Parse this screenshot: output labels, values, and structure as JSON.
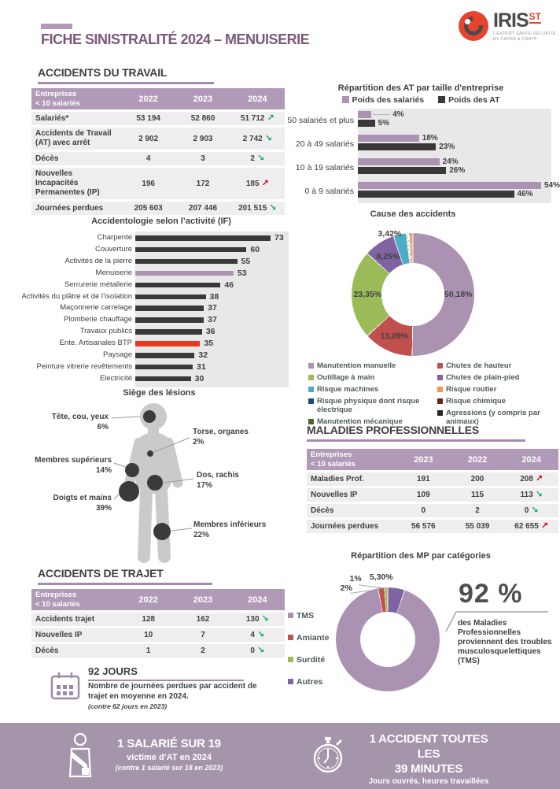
{
  "page_title": "FICHE SINISTRALITÉ 2024 – MENUISERIE",
  "logo": {
    "brand": "IRIS",
    "sup": "ST",
    "tagline_line1": "L’EXPERT SANTÉ-SÉCURITÉ",
    "tagline_line2": "BY CAPEB & CNATP"
  },
  "colors": {
    "accent_purple": "#a58bb0",
    "table_header_purple": "#b09ab8",
    "banner_purple": "#a495ab",
    "mauve": "#ad93b2",
    "dark_bar": "#3b3838",
    "highlight_red_bar": "#e8391d",
    "trend_green": "#00b050",
    "trend_red": "#c00000"
  },
  "sections": {
    "at": {
      "title": "ACCIDENTS DU TRAVAIL",
      "table": {
        "header": [
          "Entreprises\n< 10 salariés",
          "2022",
          "2023",
          "2024"
        ],
        "rows": [
          {
            "label": "Salariés*",
            "values": [
              "53 194",
              "52 860",
              "51 712"
            ],
            "trend": "up",
            "trend_color": "green"
          },
          {
            "label": "Accidents de Travail (AT) avec arrêt",
            "values": [
              "2 902",
              "2 903",
              "2 742"
            ],
            "trend": "down",
            "trend_color": "green"
          },
          {
            "label": "Décès",
            "values": [
              "4",
              "3",
              "2"
            ],
            "trend": "down",
            "trend_color": "green"
          },
          {
            "label": "Nouvelles Incapacités Permanentes (IP)",
            "values": [
              "196",
              "172",
              "185"
            ],
            "trend": "up",
            "trend_color": "red"
          },
          {
            "label": "Journées perdues",
            "values": [
              "205 603",
              "207 446",
              "201 515"
            ],
            "trend": "down",
            "trend_color": "green"
          }
        ]
      }
    },
    "lesions": {
      "title": "Siège des lésions",
      "items": [
        {
          "label": "Tête, cou, yeux",
          "pct": "6%"
        },
        {
          "label": "Torse, organes",
          "pct": "2%"
        },
        {
          "label": "Membres supérieurs",
          "pct": "14%"
        },
        {
          "label": "Dos, rachis",
          "pct": "17%"
        },
        {
          "label": "Doigts et mains",
          "pct": "39%"
        },
        {
          "label": "Membres inférieurs",
          "pct": "22%"
        }
      ]
    },
    "mp": {
      "title": "MALADIES PROFESSIONNELLES",
      "table": {
        "header": [
          "Entreprises\n< 10 salariés",
          "2023",
          "2022",
          "2024"
        ],
        "rows": [
          {
            "label": "Maladies Prof.",
            "values": [
              "191",
              "200",
              "208"
            ],
            "trend": "up",
            "trend_color": "red"
          },
          {
            "label": "Nouvelles IP",
            "values": [
              "109",
              "115",
              "113"
            ],
            "trend": "down",
            "trend_color": "green"
          },
          {
            "label": "Décès",
            "values": [
              "0",
              "2",
              "0"
            ],
            "trend": "down",
            "trend_color": "green"
          },
          {
            "label": "Journées perdues",
            "values": [
              "56 576",
              "55 039",
              "62 655"
            ],
            "trend": "up",
            "trend_color": "red"
          }
        ]
      },
      "callout": {
        "big": "92 %",
        "text": "des Maladies Professionnelles proviennent des troubles musculosquelettiques (TMS)"
      }
    },
    "trajet": {
      "title": "ACCIDENTS DE TRAJET",
      "table": {
        "header": [
          "Entreprises\n< 10 salariés",
          "2022",
          "2023",
          "2024"
        ],
        "rows": [
          {
            "label": "Accidents trajet",
            "values": [
              "128",
              "162",
              "130"
            ],
            "trend": "down",
            "trend_color": "green"
          },
          {
            "label": "Nouvelles IP",
            "values": [
              "10",
              "7",
              "4"
            ],
            "trend": "down",
            "trend_color": "green"
          },
          {
            "label": "Décès",
            "values": [
              "1",
              "2",
              "0"
            ],
            "trend": "down",
            "trend_color": "green"
          }
        ]
      }
    },
    "jours": {
      "title": "92 JOURS",
      "text": "Nombre de journées perdues par accident de trajet en moyenne en 2024.",
      "note": "(contre 62 jours en 2023)"
    },
    "banner": {
      "left": {
        "line1": "1 SALARIÉ SUR 19",
        "line2": "victime d’AT en 2024",
        "line3": "(contre 1 salarié sur 18 en 2023)"
      },
      "right": {
        "line1": "1 ACCIDENT TOUTES LES",
        "line2": "39 MINUTES",
        "line3": "Jours ouvrés, heures travaillées"
      }
    }
  },
  "chart_data": [
    {
      "id": "at_by_company_size",
      "type": "bar",
      "orientation": "horizontal",
      "title": "Répartition des AT par taille d'entreprise",
      "categories": [
        "50 salariés et plus",
        "20 à 49 salariés",
        "10 à 19 salariés",
        "0 à 9 salariés"
      ],
      "series": [
        {
          "name": "Poids des salariés",
          "color": "#ad93b2",
          "values": [
            4,
            18,
            24,
            54
          ]
        },
        {
          "name": "Poids des AT",
          "color": "#3b3838",
          "values": [
            5,
            23,
            26,
            46
          ]
        }
      ],
      "unit": "%",
      "xlim": [
        0,
        57
      ],
      "grid": false,
      "legend_position": "top"
    },
    {
      "id": "if_by_activity",
      "type": "bar",
      "orientation": "horizontal",
      "title": "Accidentologie selon l’activité (IF)",
      "categories": [
        "Charpente",
        "Couverture",
        "Activités de la pierre",
        "Menuiserie",
        "Serrurerie métallerie",
        "Activités du plâtre et de l’isolation",
        "Maçonnerie carrelage",
        "Plomberie chauffage",
        "Travaux publics",
        "Ente. Artisanales BTP",
        "Paysage",
        "Peinture vitrerie revêtements",
        "Electricité"
      ],
      "values": [
        73,
        60,
        55,
        53,
        46,
        38,
        37,
        37,
        36,
        35,
        32,
        31,
        30
      ],
      "bar_colors": {
        "default": "#3b3838",
        "Menuiserie": "#ad93b2",
        "Ente. Artisanales BTP": "#e8391d"
      },
      "xlim": [
        0,
        80
      ],
      "grid": false
    },
    {
      "id": "causes_accidents",
      "type": "pie",
      "title": "Cause des accidents",
      "hole": 0.51,
      "slices": [
        {
          "name": "Manutention manuelle",
          "value": 50.18,
          "label": "50,18%",
          "color": "#ab92b3"
        },
        {
          "name": "Chutes de hauteur",
          "value": 13.09,
          "label": "13,09%",
          "color": "#c0504d"
        },
        {
          "name": "Outillage à main",
          "value": 23.35,
          "label": "23,35%",
          "color": "#9bbb59"
        },
        {
          "name": "Chutes de plain-pied",
          "value": 8.25,
          "label": "8,25%",
          "color": "#8064a2"
        },
        {
          "name": "Risque machines",
          "value": 3.42,
          "label": "3,42%",
          "color": "#4bacc6",
          "label_angle": 339,
          "label_r": 1.06
        },
        {
          "name": "Risque physique dont risque électrique",
          "value": 0.25,
          "color": "#1f497d"
        },
        {
          "name": "Manutention mécanique",
          "value": 0.25,
          "color": "#4f6228"
        },
        {
          "name": "Agressions (y compris par animaux)",
          "value": 0.2,
          "color": "#262626"
        },
        {
          "name": "Risque chimique",
          "value": 0.35,
          "color": "#632523"
        },
        {
          "name": "Risque routier",
          "value": 0.66,
          "color": "#f79646"
        }
      ],
      "legend_col1": [
        "Manutention manuelle",
        "Outillage à main",
        "Risque machines",
        "Risque physique dont risque électrique",
        "Manutention mécanique"
      ],
      "legend_col2": [
        "Chutes de hauteur",
        "Chutes de plain-pied",
        "Risque routier",
        "Risque chimique",
        "Agressions (y compris par animaux)"
      ]
    },
    {
      "id": "mp_by_category",
      "type": "pie",
      "title": "Répartition des MP par catégories",
      "hole": 0.53,
      "slices": [
        {
          "name": "Autres",
          "value": 5.3,
          "label": "5,30%",
          "color": "#8064a2",
          "label_angle": 354,
          "label_r": 1.2
        },
        {
          "name": "TMS",
          "value": 91.7,
          "color": "#ab92b3"
        },
        {
          "name": "Amiante",
          "value": 2.0,
          "label": "2%",
          "color": "#c0504d",
          "label_angle": 321,
          "label_r": 1.27,
          "leader": true
        },
        {
          "name": "Surdité",
          "value": 1.0,
          "label": "1%",
          "color": "#9bbb59",
          "label_angle": 332,
          "label_r": 1.32,
          "leader": true
        }
      ],
      "legend": [
        "TMS",
        "Amiante",
        "Surdité",
        "Autres"
      ]
    }
  ]
}
